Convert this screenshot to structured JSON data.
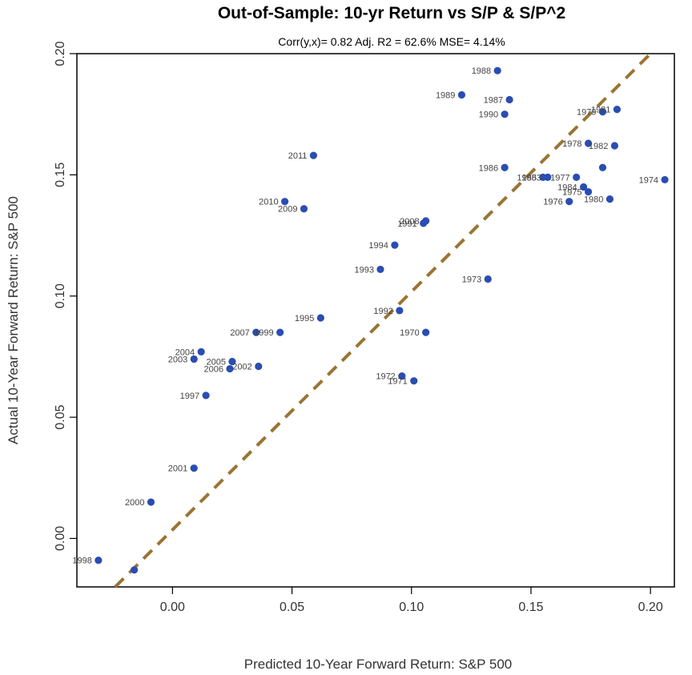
{
  "chart_data": {
    "type": "scatter",
    "title": "Out-of-Sample: 10-yr Return vs S/P & S/P^2",
    "subtitle": "Corr(y,x)= 0.82  Adj. R2 = 62.6%   MSE= 4.14%",
    "xlabel": "Predicted 10-Year Forward Return: S&P 500",
    "ylabel": "Actual 10-Year Forward Return: S&P 500",
    "xlim": [
      -0.04,
      0.21
    ],
    "ylim": [
      -0.02,
      0.2
    ],
    "xticks": [
      "0.00",
      "0.05",
      "0.10",
      "0.15",
      "0.20"
    ],
    "xtick_values": [
      0.0,
      0.05,
      0.1,
      0.15,
      0.2
    ],
    "yticks": [
      "0.00",
      "0.05",
      "0.10",
      "0.15",
      "0.20"
    ],
    "ytick_values": [
      0.0,
      0.05,
      0.1,
      0.15,
      0.2
    ],
    "point_color": "#2a4db3",
    "fit_line_color": "#9a7433",
    "fit_line": {
      "style": "dashed",
      "points": [
        [
          -0.024,
          -0.02
        ],
        [
          0.2,
          0.2
        ]
      ]
    },
    "grid": false,
    "legend": "none",
    "points": [
      {
        "label": "1998",
        "x": -0.031,
        "y": -0.009
      },
      {
        "label": "",
        "x": -0.016,
        "y": -0.013
      },
      {
        "label": "2000",
        "x": -0.009,
        "y": 0.015
      },
      {
        "label": "2001",
        "x": 0.009,
        "y": 0.029
      },
      {
        "label": "1997",
        "x": 0.014,
        "y": 0.059
      },
      {
        "label": "2004",
        "x": 0.012,
        "y": 0.077
      },
      {
        "label": "2003",
        "x": 0.009,
        "y": 0.074
      },
      {
        "label": "2005",
        "x": 0.025,
        "y": 0.073
      },
      {
        "label": "2006",
        "x": 0.024,
        "y": 0.07
      },
      {
        "label": "2002",
        "x": 0.036,
        "y": 0.071
      },
      {
        "label": "2007",
        "x": 0.035,
        "y": 0.085
      },
      {
        "label": "1999",
        "x": 0.045,
        "y": 0.085
      },
      {
        "label": "1995",
        "x": 0.062,
        "y": 0.091
      },
      {
        "label": "2010",
        "x": 0.047,
        "y": 0.139
      },
      {
        "label": "2009",
        "x": 0.055,
        "y": 0.136
      },
      {
        "label": "2011",
        "x": 0.059,
        "y": 0.158
      },
      {
        "label": "1993",
        "x": 0.087,
        "y": 0.111
      },
      {
        "label": "1994",
        "x": 0.093,
        "y": 0.121
      },
      {
        "label": "2008",
        "x": 0.106,
        "y": 0.131
      },
      {
        "label": "1991",
        "x": 0.105,
        "y": 0.13
      },
      {
        "label": "1992",
        "x": 0.095,
        "y": 0.094
      },
      {
        "label": "1970",
        "x": 0.106,
        "y": 0.085
      },
      {
        "label": "1972",
        "x": 0.096,
        "y": 0.067
      },
      {
        "label": "1971",
        "x": 0.101,
        "y": 0.065
      },
      {
        "label": "1973",
        "x": 0.132,
        "y": 0.107
      },
      {
        "label": "1988",
        "x": 0.136,
        "y": 0.193
      },
      {
        "label": "1989",
        "x": 0.121,
        "y": 0.183
      },
      {
        "label": "1987",
        "x": 0.141,
        "y": 0.181
      },
      {
        "label": "1990",
        "x": 0.139,
        "y": 0.175
      },
      {
        "label": "1986",
        "x": 0.139,
        "y": 0.153
      },
      {
        "label": "1985",
        "x": 0.155,
        "y": 0.149
      },
      {
        "label": "1983",
        "x": 0.157,
        "y": 0.149
      },
      {
        "label": "1977",
        "x": 0.169,
        "y": 0.149
      },
      {
        "label": "1984",
        "x": 0.172,
        "y": 0.145
      },
      {
        "label": "1975",
        "x": 0.174,
        "y": 0.143
      },
      {
        "label": "1976",
        "x": 0.166,
        "y": 0.139
      },
      {
        "label": "1980",
        "x": 0.183,
        "y": 0.14
      },
      {
        "label": "1978",
        "x": 0.174,
        "y": 0.163
      },
      {
        "label": "1982",
        "x": 0.185,
        "y": 0.162
      },
      {
        "label": "1979",
        "x": 0.18,
        "y": 0.176
      },
      {
        "label": "1981",
        "x": 0.186,
        "y": 0.177
      },
      {
        "label": "1974",
        "x": 0.206,
        "y": 0.148
      },
      {
        "label": "",
        "x": 0.18,
        "y": 0.153
      }
    ]
  }
}
